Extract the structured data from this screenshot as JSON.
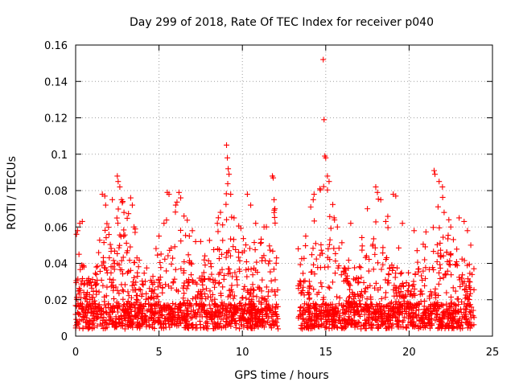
{
  "chart_data": {
    "type": "scatter",
    "title": "Day 299 of 2018, Rate Of TEC Index for receiver p040",
    "xlabel": "GPS time / hours",
    "ylabel": "ROTI / TECUs",
    "xlim": [
      0,
      25
    ],
    "ylim": [
      0,
      0.16
    ],
    "x_ticks": [
      0,
      5,
      10,
      15,
      20,
      25
    ],
    "y_ticks": [
      0,
      0.02,
      0.04,
      0.06,
      0.08,
      0.1,
      0.12,
      0.14,
      0.16
    ],
    "x_tick_labels": [
      "0",
      "5",
      "10",
      "15",
      "20",
      "25"
    ],
    "y_tick_labels": [
      "0",
      "0.02",
      "0.04",
      "0.06",
      "0.08",
      "0.1",
      "0.12",
      "0.14",
      "0.16"
    ],
    "grid": true,
    "marker": "plus",
    "color": "#ff0000",
    "data_gap_hours": [
      12.15,
      13.35
    ],
    "series": [
      {
        "points": [
          [
            0.05,
            0.056
          ],
          [
            0.12,
            0.058
          ],
          [
            0.25,
            0.062
          ],
          [
            0.4,
            0.063
          ],
          [
            0.2,
            0.045
          ],
          [
            0.5,
            0.038
          ],
          [
            1.6,
            0.078
          ],
          [
            1.75,
            0.077
          ],
          [
            1.8,
            0.072
          ],
          [
            2.2,
            0.075
          ],
          [
            2.5,
            0.088
          ],
          [
            2.55,
            0.085
          ],
          [
            2.65,
            0.082
          ],
          [
            2.75,
            0.075
          ],
          [
            2.9,
            0.068
          ],
          [
            3.3,
            0.076
          ],
          [
            3.4,
            0.072
          ],
          [
            3.5,
            0.06
          ],
          [
            5.0,
            0.055
          ],
          [
            5.3,
            0.062
          ],
          [
            5.5,
            0.079
          ],
          [
            5.6,
            0.078
          ],
          [
            6.0,
            0.072
          ],
          [
            6.2,
            0.079
          ],
          [
            6.3,
            0.076
          ],
          [
            6.5,
            0.066
          ],
          [
            7.0,
            0.058
          ],
          [
            7.5,
            0.052
          ],
          [
            8.5,
            0.062
          ],
          [
            9.05,
            0.105
          ],
          [
            9.1,
            0.098
          ],
          [
            9.15,
            0.092
          ],
          [
            9.2,
            0.089
          ],
          [
            9.3,
            0.078
          ],
          [
            9.5,
            0.065
          ],
          [
            10.3,
            0.078
          ],
          [
            10.5,
            0.072
          ],
          [
            10.8,
            0.062
          ],
          [
            11.3,
            0.06
          ],
          [
            11.8,
            0.088
          ],
          [
            11.85,
            0.087
          ],
          [
            11.9,
            0.075
          ],
          [
            11.95,
            0.07
          ],
          [
            12.05,
            0.043
          ],
          [
            13.35,
            0.048
          ],
          [
            13.8,
            0.055
          ],
          [
            14.1,
            0.071
          ],
          [
            14.25,
            0.075
          ],
          [
            14.3,
            0.078
          ],
          [
            14.65,
            0.081
          ],
          [
            14.85,
            0.152
          ],
          [
            14.9,
            0.119
          ],
          [
            14.95,
            0.099
          ],
          [
            15.0,
            0.098
          ],
          [
            15.1,
            0.088
          ],
          [
            15.2,
            0.085
          ],
          [
            15.5,
            0.065
          ],
          [
            15.7,
            0.06
          ],
          [
            16.5,
            0.062
          ],
          [
            17.5,
            0.07
          ],
          [
            18.0,
            0.082
          ],
          [
            18.1,
            0.079
          ],
          [
            18.3,
            0.075
          ],
          [
            18.6,
            0.063
          ],
          [
            19.05,
            0.078
          ],
          [
            19.2,
            0.077
          ],
          [
            19.6,
            0.062
          ],
          [
            20.3,
            0.058
          ],
          [
            21.5,
            0.091
          ],
          [
            21.55,
            0.089
          ],
          [
            21.8,
            0.085
          ],
          [
            22.0,
            0.082
          ],
          [
            22.1,
            0.068
          ],
          [
            22.5,
            0.06
          ],
          [
            23.0,
            0.065
          ],
          [
            23.3,
            0.063
          ],
          [
            23.5,
            0.058
          ],
          [
            23.7,
            0.05
          ]
        ]
      }
    ]
  }
}
